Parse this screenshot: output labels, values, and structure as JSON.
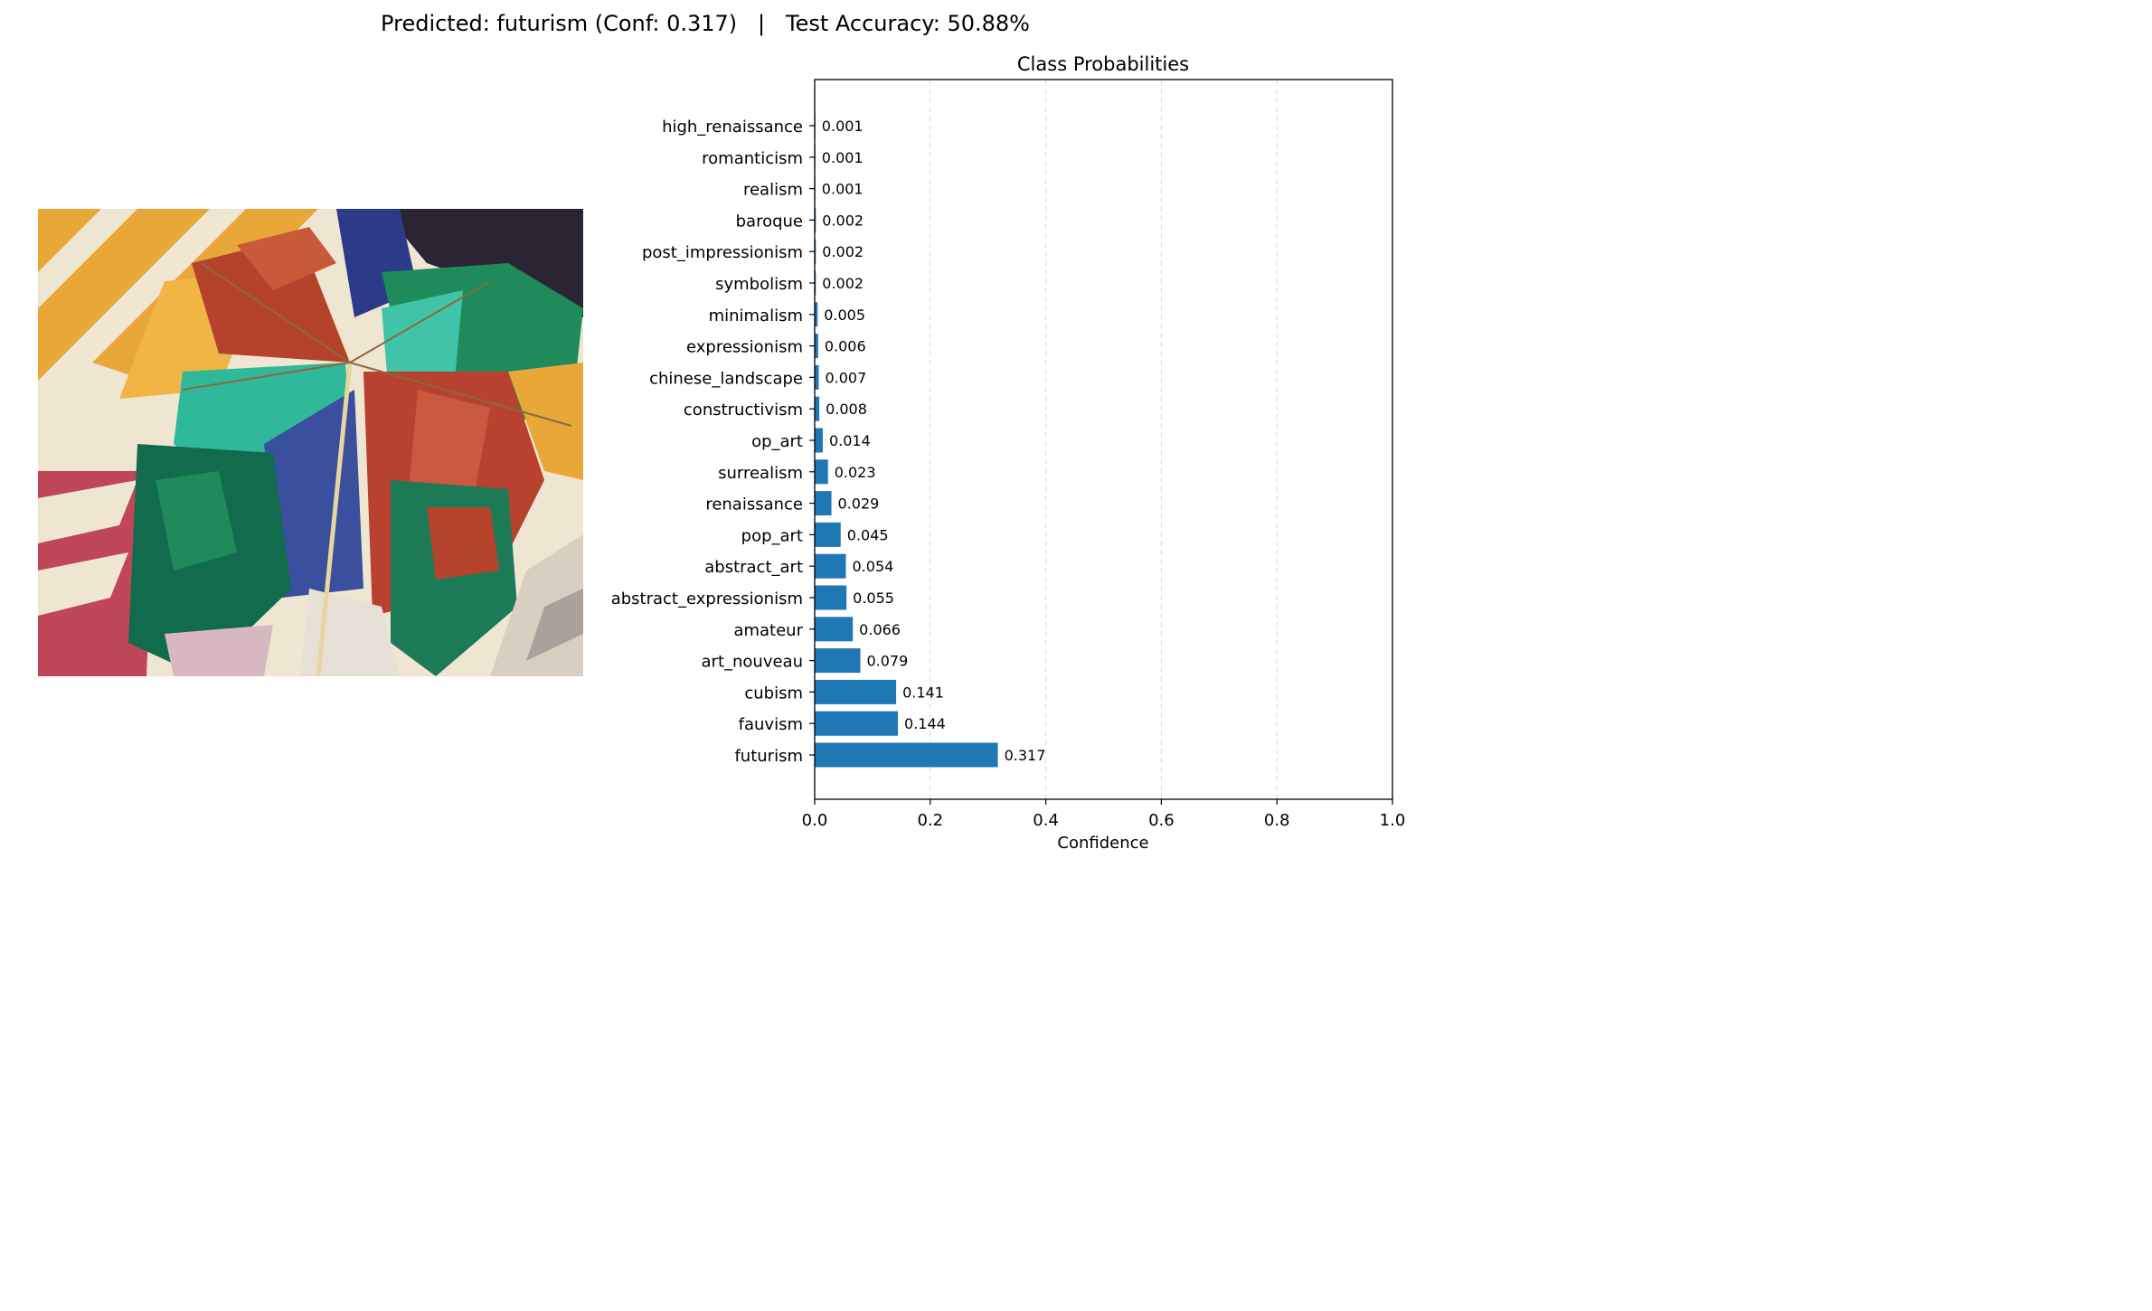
{
  "suptitle": "Predicted: futurism (Conf: 0.317)   |   Test Accuracy: 50.88%",
  "chart_data": {
    "type": "bar",
    "orientation": "horizontal",
    "title": "Class Probabilities",
    "xlabel": "Confidence",
    "ylabel": "",
    "xlim": [
      0,
      1
    ],
    "xticks": [
      "0.0",
      "0.2",
      "0.4",
      "0.6",
      "0.8",
      "1.0"
    ],
    "grid": "x dashed",
    "bar_color": "#1f77b4",
    "categories": [
      "futurism",
      "fauvism",
      "cubism",
      "art_nouveau",
      "amateur",
      "abstract_expressionism",
      "abstract_art",
      "pop_art",
      "renaissance",
      "surrealism",
      "op_art",
      "constructivism",
      "chinese_landscape",
      "expressionism",
      "minimalism",
      "symbolism",
      "post_impressionism",
      "baroque",
      "realism",
      "romanticism",
      "high_renaissance"
    ],
    "values": [
      0.317,
      0.144,
      0.141,
      0.079,
      0.066,
      0.055,
      0.054,
      0.045,
      0.029,
      0.023,
      0.014,
      0.008,
      0.007,
      0.006,
      0.005,
      0.002,
      0.002,
      0.002,
      0.001,
      0.001,
      0.001
    ],
    "labels": [
      "0.317",
      "0.144",
      "0.141",
      "0.079",
      "0.066",
      "0.055",
      "0.054",
      "0.045",
      "0.029",
      "0.023",
      "0.014",
      "0.008",
      "0.007",
      "0.006",
      "0.005",
      "0.002",
      "0.002",
      "0.002",
      "0.001",
      "0.001",
      "0.001"
    ]
  },
  "artwork": {
    "description": "cubist-futurist painting of colorful umbrellas",
    "colors": [
      "#e9a73a",
      "#efe6d2",
      "#b5432c",
      "#1f8a5a",
      "#2fb89a",
      "#3a4f9e",
      "#2a2433",
      "#c0465a",
      "#d9cfc0"
    ]
  }
}
